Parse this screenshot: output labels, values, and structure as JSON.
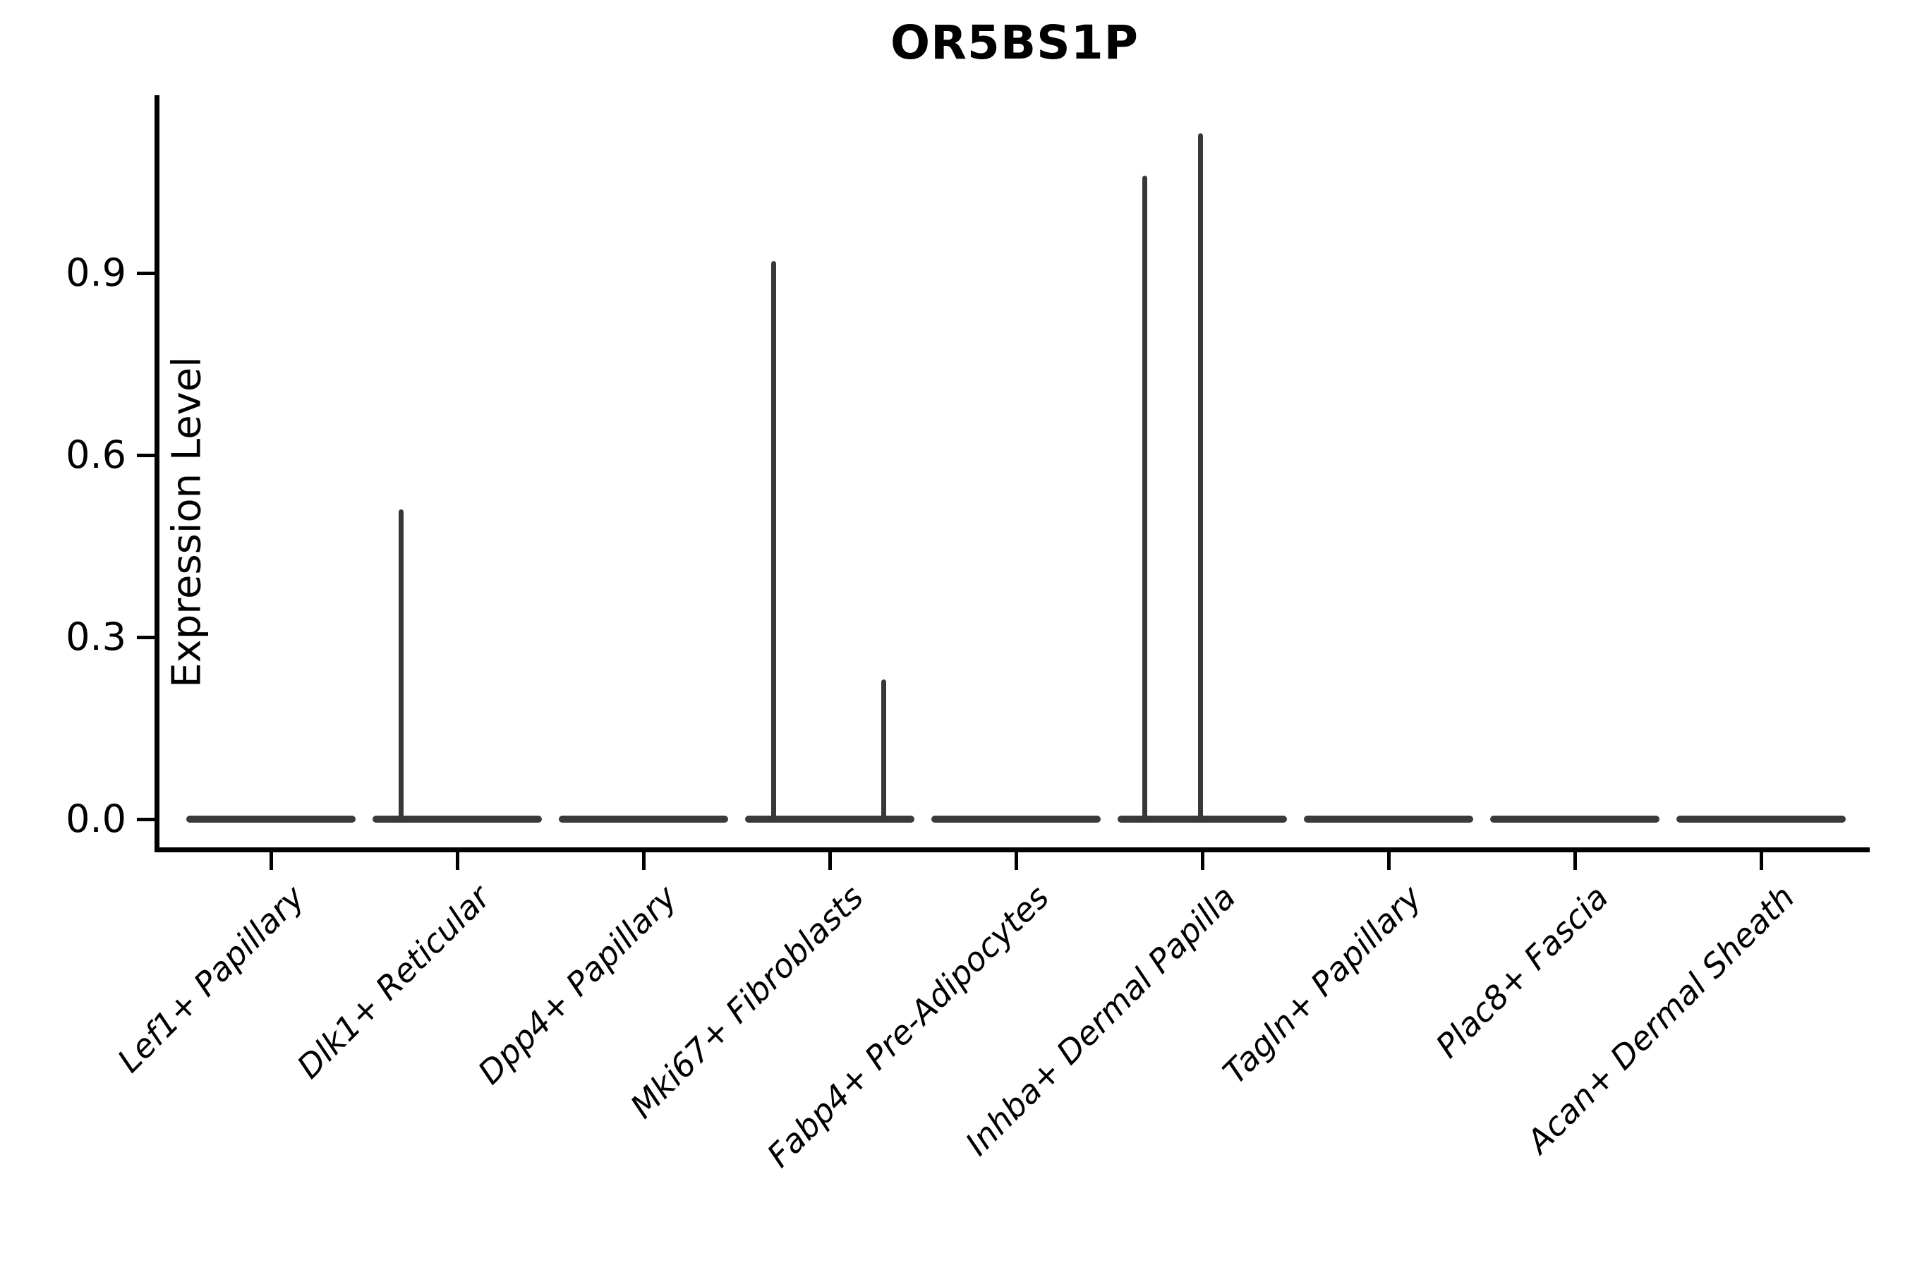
{
  "title": "OR5BS1P",
  "colors": {
    "violin": "#3a3a3a",
    "axis": "#000000",
    "text": "#000000",
    "background": "#ffffff"
  },
  "chart_data": {
    "type": "violin",
    "title": "OR5BS1P",
    "xlabel": "",
    "ylabel": "Expression Level",
    "yticks": [
      0.0,
      0.3,
      0.6,
      0.9
    ],
    "ylim": [
      -0.055,
      1.19
    ],
    "grid": false,
    "legend": "none",
    "violin_width": 0.9,
    "baseline_value": 0.0,
    "categories": [
      "Lef1+ Papillary",
      "Dlk1+ Reticular",
      "Dpp4+ Papillary",
      "Mki67+ Fibroblasts",
      "Fabp4+ Pre-Adipocytes",
      "Inhba+ Dermal Papilla",
      "Tagln+ Papillary",
      "Plac8+ Fascia",
      "Acan+ Dermal Sheath"
    ],
    "violins": [
      {
        "category": "Lef1+ Papillary",
        "flat_at_zero": true,
        "spikes": []
      },
      {
        "category": "Dlk1+ Reticular",
        "flat_at_zero": true,
        "spikes": [
          {
            "offset": -0.3,
            "peak": 0.51
          }
        ]
      },
      {
        "category": "Dpp4+ Papillary",
        "flat_at_zero": true,
        "spikes": []
      },
      {
        "category": "Mki67+ Fibroblasts",
        "flat_at_zero": true,
        "spikes": [
          {
            "offset": -0.3,
            "peak": 0.92
          },
          {
            "offset": 0.29,
            "peak": 0.23
          }
        ]
      },
      {
        "category": "Fabp4+ Pre-Adipocytes",
        "flat_at_zero": true,
        "spikes": []
      },
      {
        "category": "Inhba+ Dermal Papilla",
        "flat_at_zero": true,
        "spikes": [
          {
            "offset": -0.31,
            "peak": 1.06
          },
          {
            "offset": -0.01,
            "peak": 1.13
          }
        ]
      },
      {
        "category": "Tagln+ Papillary",
        "flat_at_zero": true,
        "spikes": []
      },
      {
        "category": "Plac8+ Fascia",
        "flat_at_zero": true,
        "spikes": []
      },
      {
        "category": "Acan+ Dermal Sheath",
        "flat_at_zero": true,
        "spikes": []
      }
    ]
  }
}
